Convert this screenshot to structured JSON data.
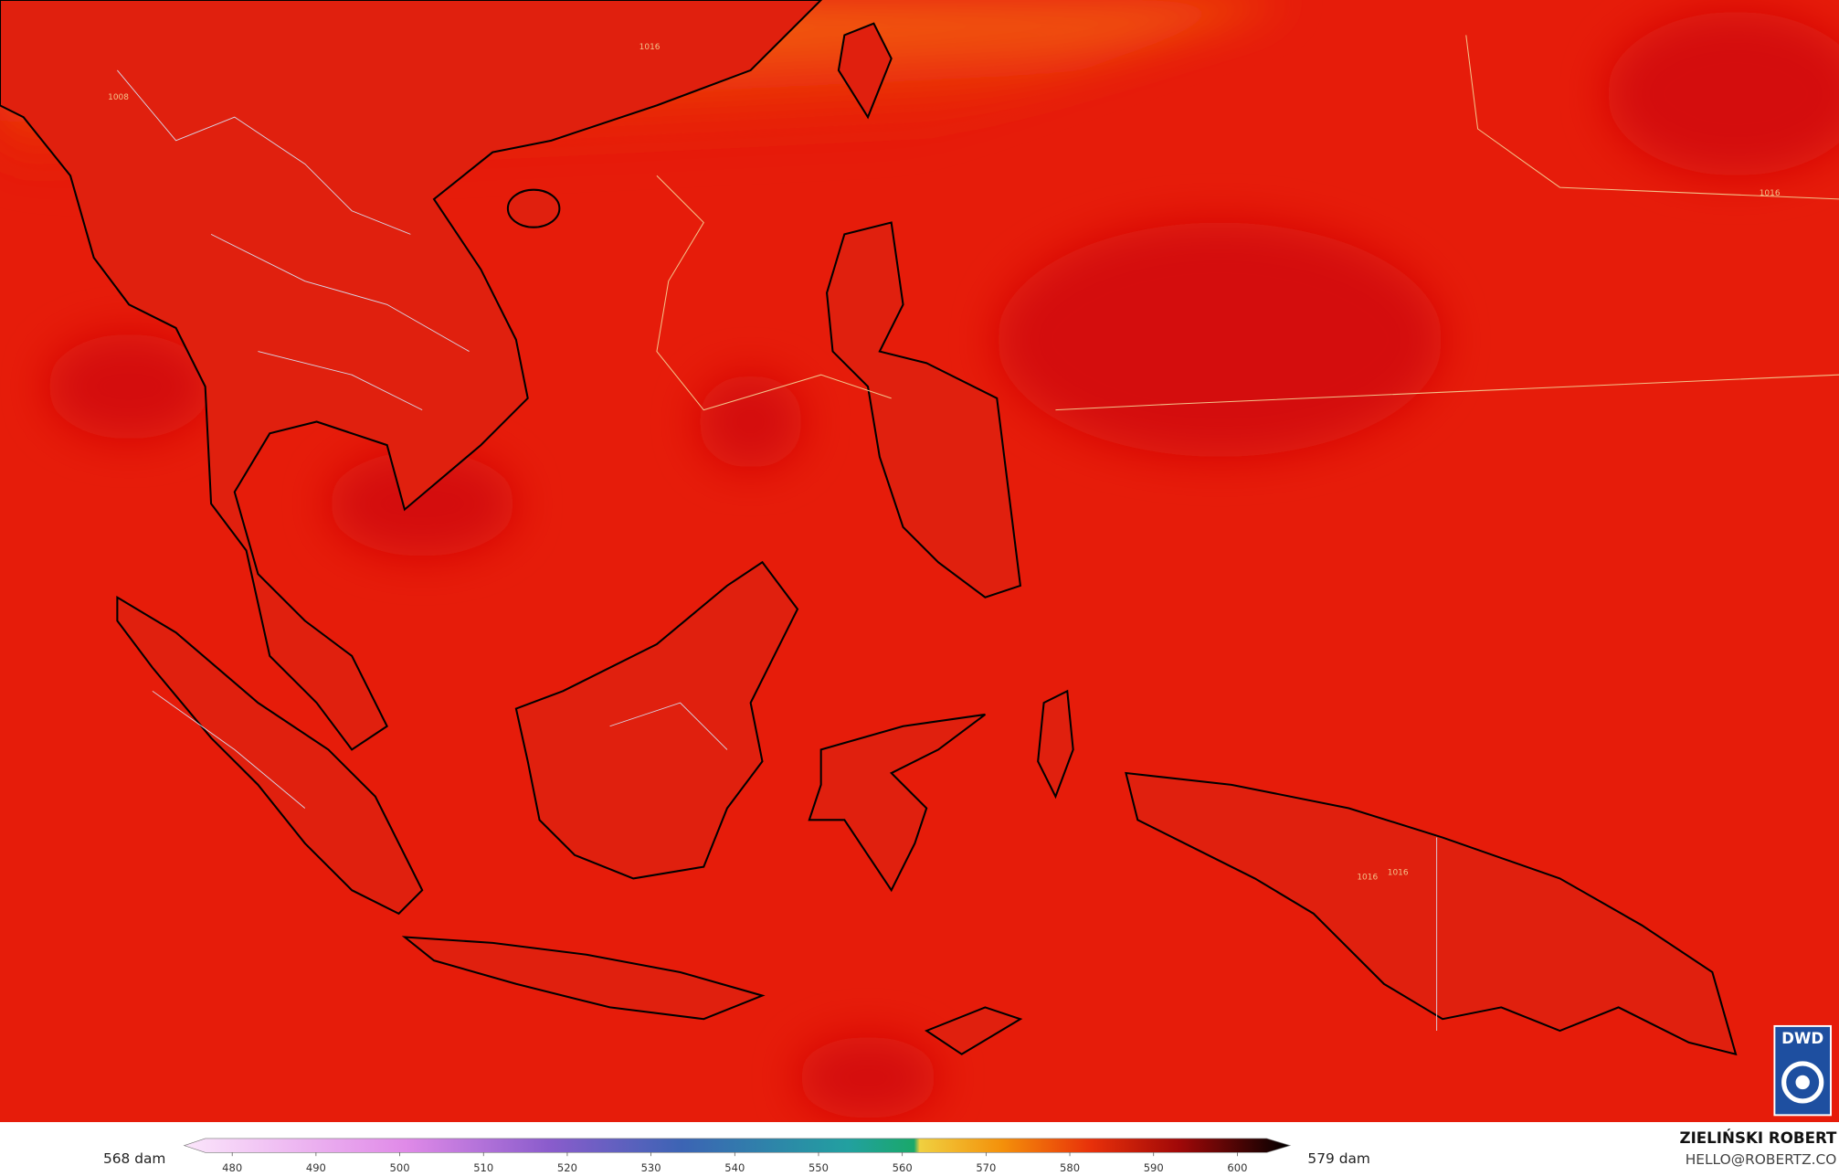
{
  "map": {
    "contour_labels": [
      "1016",
      "1008",
      "1016",
      "1016",
      "1016"
    ]
  },
  "legend": {
    "min_label": "568 dam",
    "max_label": "579 dam",
    "ticks": [
      480,
      490,
      500,
      510,
      520,
      530,
      540,
      550,
      560,
      570,
      580,
      590,
      600
    ]
  },
  "credit": {
    "name": "ZIELIŃSKI ROBERT",
    "email": "HELLO@ROBERTZ.CO"
  },
  "logo": {
    "text": "DWD"
  }
}
